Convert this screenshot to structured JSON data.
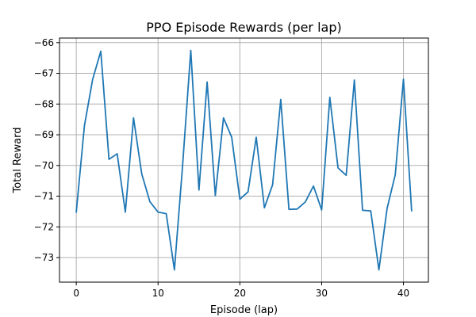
{
  "chart_data": {
    "type": "line",
    "title": "PPO Episode Rewards (per lap)",
    "xlabel": "Episode (lap)",
    "ylabel": "Total Reward",
    "xlim": [
      -2.05,
      43.05
    ],
    "ylim": [
      -73.8,
      -65.85
    ],
    "grid": true,
    "x_ticks": [
      0,
      10,
      20,
      30,
      40
    ],
    "x_tick_labels": [
      "0",
      "10",
      "20",
      "30",
      "40"
    ],
    "y_ticks": [
      -66,
      -67,
      -68,
      -69,
      -70,
      -71,
      -72,
      -73
    ],
    "y_tick_labels": [
      "−66",
      "−67",
      "−68",
      "−69",
      "−70",
      "−71",
      "−72",
      "−73"
    ],
    "series": [
      {
        "color": "#1f77b4",
        "x": [
          0,
          1,
          2,
          3,
          4,
          5,
          6,
          7,
          8,
          9,
          10,
          11,
          12,
          13,
          14,
          15,
          16,
          17,
          18,
          19,
          20,
          21,
          22,
          23,
          24,
          25,
          26,
          27,
          28,
          29,
          30,
          31,
          32,
          33,
          34,
          35,
          36,
          37,
          38,
          39,
          40,
          41
        ],
        "y": [
          -71.52,
          -68.7,
          -67.2,
          -66.28,
          -69.8,
          -69.62,
          -71.52,
          -68.45,
          -70.27,
          -71.18,
          -71.52,
          -71.57,
          -73.4,
          -70.0,
          -66.25,
          -70.8,
          -67.28,
          -70.98,
          -68.45,
          -69.08,
          -71.1,
          -70.86,
          -69.08,
          -71.38,
          -70.63,
          -67.85,
          -71.43,
          -71.42,
          -71.19,
          -70.67,
          -71.45,
          -67.78,
          -70.08,
          -70.32,
          -67.22,
          -71.46,
          -71.48,
          -73.4,
          -71.4,
          -70.3,
          -67.19,
          -71.48
        ]
      }
    ]
  }
}
